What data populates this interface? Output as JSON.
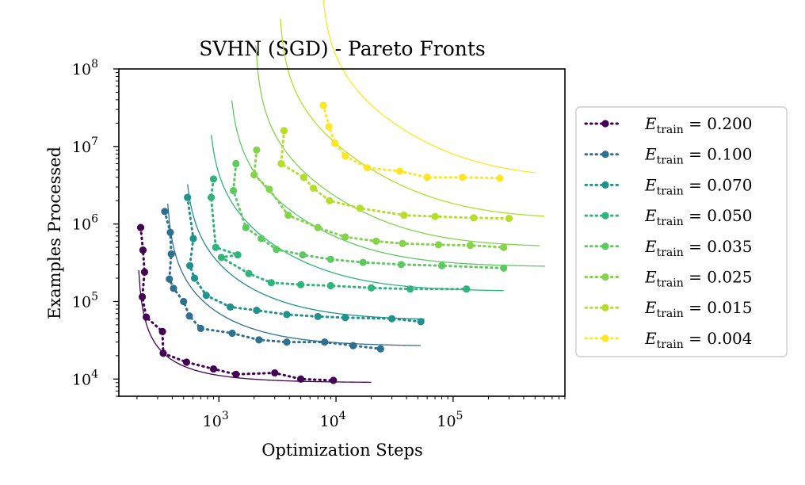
{
  "chart_data": {
    "type": "scatter",
    "title": "SVHN (SGD) - Pareto Fronts",
    "xlabel": "Optimization Steps",
    "ylabel": "Examples Processed",
    "xscale": "log",
    "yscale": "log",
    "xlim": [
      140,
      900000
    ],
    "ylim": [
      6000,
      100000000
    ],
    "xticks": [
      {
        "value": 1000,
        "base": "10",
        "exp": "3"
      },
      {
        "value": 10000,
        "base": "10",
        "exp": "4"
      },
      {
        "value": 100000,
        "base": "10",
        "exp": "5"
      }
    ],
    "yticks": [
      {
        "value": 10000,
        "base": "10",
        "exp": "4"
      },
      {
        "value": 100000,
        "base": "10",
        "exp": "5"
      },
      {
        "value": 1000000,
        "base": "10",
        "exp": "6"
      },
      {
        "value": 10000000,
        "base": "10",
        "exp": "7"
      },
      {
        "value": 100000000,
        "base": "10",
        "exp": "8"
      }
    ],
    "legend": {
      "placement": "outside-right",
      "symbol": "E",
      "subscript": "train"
    },
    "series": [
      {
        "name": "0.200",
        "color": "#440154",
        "points": [
          [
            215,
            900000
          ],
          [
            225,
            460000
          ],
          [
            232,
            240000
          ],
          [
            222,
            115000
          ],
          [
            240,
            63000
          ],
          [
            330,
            41000
          ],
          [
            335,
            21500
          ],
          [
            530,
            16500
          ],
          [
            900,
            13500
          ],
          [
            1400,
            11500
          ],
          [
            3000,
            12000
          ],
          [
            5000,
            10000
          ],
          [
            9500,
            9600
          ]
        ],
        "fit": {
          "xmin": 207,
          "xmax": 20000,
          "a": 9000,
          "b": 0.95,
          "x0": 200
        }
      },
      {
        "name": "0.100",
        "color": "#30708e",
        "points": [
          [
            345,
            1450000
          ],
          [
            385,
            780000
          ],
          [
            392,
            410000
          ],
          [
            378,
            195000
          ],
          [
            410,
            148000
          ],
          [
            500,
            100000
          ],
          [
            560,
            65000
          ],
          [
            700,
            45000
          ],
          [
            1300,
            39000
          ],
          [
            2200,
            32000
          ],
          [
            3800,
            30000
          ],
          [
            8000,
            30000
          ],
          [
            14000,
            27000
          ],
          [
            24000,
            24500
          ]
        ],
        "fit": {
          "xmin": 366,
          "xmax": 53000,
          "a": 26500,
          "b": 3.1,
          "x0": 350
        }
      },
      {
        "name": "0.070",
        "color": "#21918c",
        "points": [
          [
            540,
            2200000
          ],
          [
            605,
            650000
          ],
          [
            565,
            290000
          ],
          [
            620,
            200000
          ],
          [
            780,
            120000
          ],
          [
            1250,
            85000
          ],
          [
            2100,
            77000
          ],
          [
            3800,
            68000
          ],
          [
            7000,
            64000
          ],
          [
            12000,
            62000
          ],
          [
            30000,
            60000
          ],
          [
            53000,
            55000
          ]
        ],
        "fit": {
          "xmin": 540,
          "xmax": 57000,
          "a": 57000,
          "b": 4.5,
          "x0": 500
        }
      },
      {
        "name": "0.050",
        "color": "#2fb47c",
        "points": [
          [
            900,
            3800000
          ],
          [
            860,
            2200000
          ],
          [
            940,
            500000
          ],
          [
            1450,
            400000
          ],
          [
            1050,
            370000
          ],
          [
            1800,
            230000
          ],
          [
            2800,
            175000
          ],
          [
            5000,
            165000
          ],
          [
            9000,
            160000
          ],
          [
            20000,
            150000
          ],
          [
            43000,
            145000
          ],
          [
            130000,
            145000
          ]
        ],
        "fit": {
          "xmin": 862,
          "xmax": 270000,
          "a": 135000,
          "b": 8,
          "x0": 800
        }
      },
      {
        "name": "0.035",
        "color": "#5ec962",
        "points": [
          [
            1400,
            6000000
          ],
          [
            1330,
            2700000
          ],
          [
            1700,
            900000
          ],
          [
            2300,
            650000
          ],
          [
            3100,
            470000
          ],
          [
            5200,
            400000
          ],
          [
            9000,
            350000
          ],
          [
            17000,
            320000
          ],
          [
            36000,
            300000
          ],
          [
            80000,
            290000
          ],
          [
            270000,
            270000
          ]
        ],
        "fit": {
          "xmin": 1290,
          "xmax": 610000,
          "a": 280000,
          "b": 10.5,
          "x0": 1200
        }
      },
      {
        "name": "0.025",
        "color": "#84d44b",
        "points": [
          [
            2100,
            9000000
          ],
          [
            2000,
            4300000
          ],
          [
            2700,
            2800000
          ],
          [
            3900,
            1300000
          ],
          [
            7000,
            900000
          ],
          [
            12000,
            680000
          ],
          [
            22000,
            600000
          ],
          [
            37000,
            560000
          ],
          [
            75000,
            540000
          ],
          [
            140000,
            530000
          ],
          [
            270000,
            500000
          ]
        ],
        "fit": {
          "xmin": 2070,
          "xmax": 550000,
          "a": 500000,
          "b": 14,
          "x0": 2000
        }
      },
      {
        "name": "0.015",
        "color": "#b5de2b",
        "points": [
          [
            3600,
            16000000
          ],
          [
            3400,
            6000000
          ],
          [
            5300,
            4000000
          ],
          [
            6400,
            2900000
          ],
          [
            8800,
            2000000
          ],
          [
            16000,
            1600000
          ],
          [
            38000,
            1300000
          ],
          [
            70000,
            1250000
          ],
          [
            150000,
            1200000
          ],
          [
            300000,
            1180000
          ]
        ],
        "fit": {
          "xmin": 3350,
          "xmax": 600000,
          "a": 1150000,
          "b": 18,
          "x0": 3200
        }
      },
      {
        "name": "0.004",
        "color": "#fde725",
        "points": [
          [
            7800,
            34000000
          ],
          [
            8700,
            18000000
          ],
          [
            9800,
            11000000
          ],
          [
            12000,
            7500000
          ],
          [
            18500,
            5300000
          ],
          [
            35000,
            4800000
          ],
          [
            60000,
            4000000
          ],
          [
            120000,
            4000000
          ],
          [
            250000,
            3900000
          ]
        ],
        "fit": {
          "xmin": 7700,
          "xmax": 500000,
          "a": 3800000,
          "b": 14,
          "x0": 7300
        }
      }
    ]
  }
}
